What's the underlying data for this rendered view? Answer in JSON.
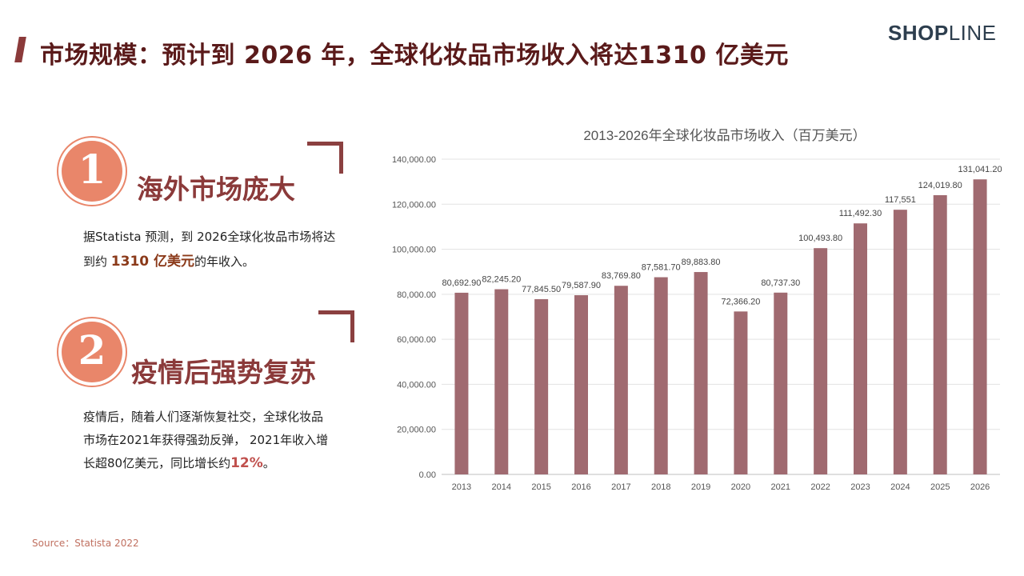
{
  "header": {
    "title": "市场规模：预计到 2026 年，全球化妆品市场收入将达1310 亿美元",
    "logo_bold": "SHOP",
    "logo_thin": "LINE"
  },
  "sections": [
    {
      "number": "1",
      "heading": "海外市场庞大",
      "text_line1": "据Statista 预测，到 2026全球化妆品市场将达",
      "text_line2_pre": "到约 ",
      "text_line2_highlight": "1310 亿美元",
      "text_line2_post": "的年收入。"
    },
    {
      "number": "2",
      "heading": "疫情后强势复苏",
      "text_line1": "疫情后，随着人们逐渐恢复社交，全球化妆品",
      "text_line2": "市场在2021年获得强劲反弹， 2021年收入增",
      "text_line3_pre": "长超80亿美元，同比增长约",
      "text_line3_highlight": "12%",
      "text_line3_post": "。"
    }
  ],
  "source": "Source：Statista 2022",
  "colors": {
    "bar": "#a06a70",
    "title_bar": "#8b3a3a",
    "badge": "#e9866a",
    "heading": "#8b3a3a"
  },
  "chart_data": {
    "type": "bar",
    "title": "2013-2026年全球化妆品市场收入（百万美元）",
    "categories": [
      "2013",
      "2014",
      "2015",
      "2016",
      "2017",
      "2018",
      "2019",
      "2020",
      "2021",
      "2022",
      "2023",
      "2024",
      "2025",
      "2026"
    ],
    "values": [
      80692.9,
      82245.2,
      77845.5,
      79587.9,
      83769.8,
      87581.7,
      89883.8,
      72366.2,
      80737.3,
      100493.8,
      111492.3,
      117551,
      124019.8,
      131041.2
    ],
    "data_labels": [
      "80,692.90",
      "82,245.20",
      "77,845.50",
      "79,587.90",
      "83,769.80",
      "87,581.70",
      "89,883.80",
      "72,366.20",
      "80,737.30",
      "100,493.80",
      "111,492.30",
      "117,551",
      "124,019.80",
      "131,041.20"
    ],
    "y_ticks": [
      "0.00",
      "20,000.00",
      "40,000.00",
      "60,000.00",
      "80,000.00",
      "100,000.00",
      "120,000.00",
      "140,000.00"
    ],
    "ylim": [
      0,
      140000
    ],
    "grid": true,
    "legend": "none"
  }
}
